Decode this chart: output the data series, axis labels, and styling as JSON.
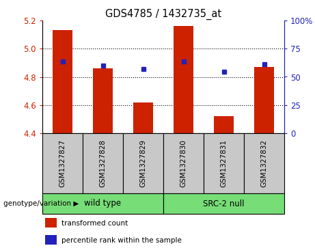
{
  "title": "GDS4785 / 1432735_at",
  "samples": [
    "GSM1327827",
    "GSM1327828",
    "GSM1327829",
    "GSM1327830",
    "GSM1327831",
    "GSM1327832"
  ],
  "red_values": [
    5.13,
    4.86,
    4.62,
    5.16,
    4.52,
    4.87
  ],
  "blue_values": [
    4.91,
    4.88,
    4.855,
    4.91,
    4.835,
    4.89
  ],
  "baseline": 4.4,
  "ylim": [
    4.4,
    5.2
  ],
  "right_ylim": [
    0,
    100
  ],
  "yticks_left": [
    4.4,
    4.6,
    4.8,
    5.0,
    5.2
  ],
  "yticks_right": [
    0,
    25,
    50,
    75,
    100
  ],
  "bar_color": "#CC2200",
  "dot_color": "#2222BB",
  "bg_color": "#C8C8C8",
  "group_color": "#77DD77",
  "left_tick_color": "#CC2200",
  "right_tick_color": "#2222BB",
  "bar_width": 0.5,
  "group_defs": [
    {
      "label": "wild type",
      "start": 0,
      "end": 3
    },
    {
      "label": "SRC-2 null",
      "start": 3,
      "end": 6
    }
  ],
  "legend_items": [
    {
      "label": "transformed count",
      "color": "#CC2200"
    },
    {
      "label": "percentile rank within the sample",
      "color": "#2222BB"
    }
  ]
}
